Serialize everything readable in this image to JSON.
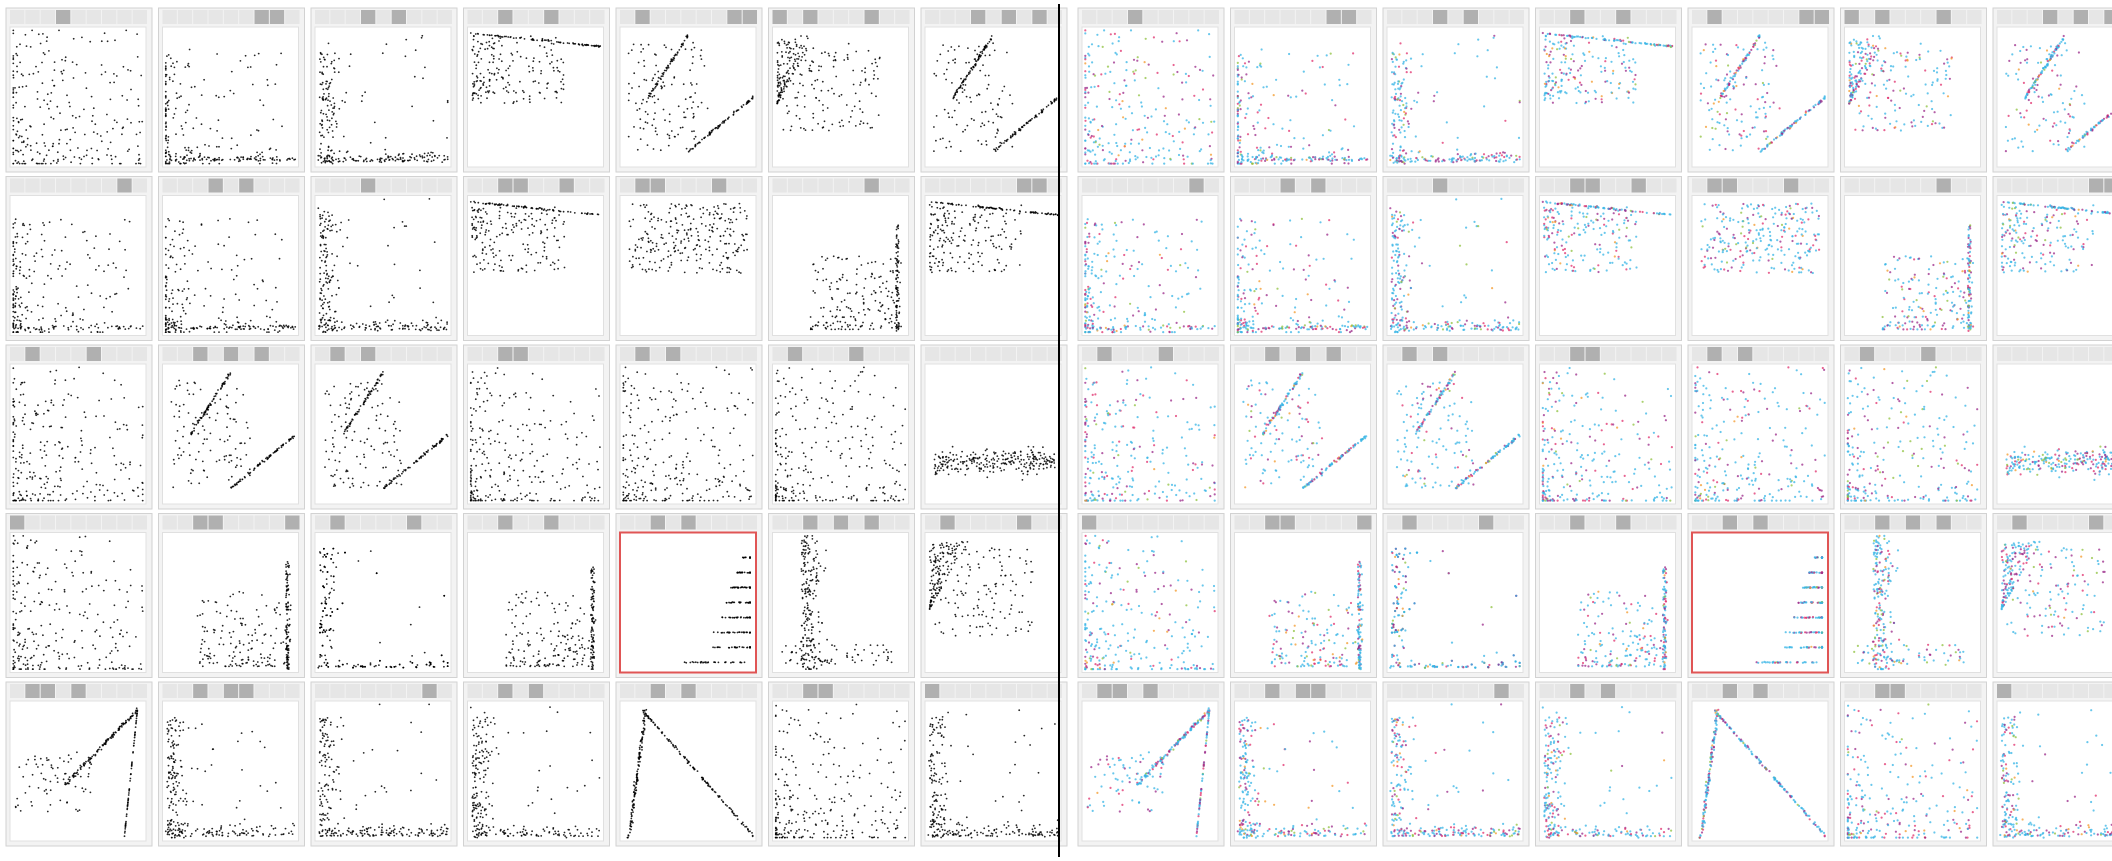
{
  "colors": {
    "page_background": "#ffffff",
    "tile_frame": "#d2d2d2",
    "tile_frame_bg": "#f3f3f3",
    "scagnostic_bar_cell": "#e6e6e6",
    "scagnostic_bar_active": "#b0b0b0",
    "highlight_border": "#e05555",
    "divider": "#000000",
    "mono_point": "#000000",
    "cluster_palette": [
      "#35b4e6",
      "#9b2a8a",
      "#e0306e",
      "#8fc23f",
      "#f39a2b"
    ]
  },
  "chart_data": [
    {
      "type": "scatter",
      "panel": "left",
      "coloring": "monochrome",
      "rows": 5,
      "columns": 7,
      "scagnostic_bar_segments": 9,
      "highlighted_tile": {
        "row": 4,
        "col": 5
      },
      "tiles": [
        {
          "pattern": "corner-dense",
          "bars": [
            3
          ]
        },
        {
          "pattern": "vertical-band-left",
          "bars": [
            6,
            7
          ]
        },
        {
          "pattern": "l-shape",
          "bars": [
            3,
            5
          ]
        },
        {
          "pattern": "top-line",
          "bars": [
            2,
            5
          ]
        },
        {
          "pattern": "two-lines",
          "bars": [
            1,
            7,
            8
          ]
        },
        {
          "pattern": "fan-left",
          "bars": [
            0,
            2,
            6
          ]
        },
        {
          "pattern": "two-lines",
          "bars": [
            3,
            5,
            7
          ]
        },
        {
          "pattern": "vertical-band-left",
          "bars": [
            7
          ]
        },
        {
          "pattern": "vertical-band-left",
          "bars": [
            3,
            5
          ]
        },
        {
          "pattern": "l-shape",
          "bars": [
            3
          ]
        },
        {
          "pattern": "top-line",
          "bars": [
            2,
            3,
            6
          ]
        },
        {
          "pattern": "top-cloud",
          "bars": [
            1,
            2,
            6
          ]
        },
        {
          "pattern": "right-l",
          "bars": [
            6
          ]
        },
        {
          "pattern": "top-line",
          "bars": [
            6,
            7
          ]
        },
        {
          "pattern": "corner-dense",
          "bars": [
            1,
            5
          ]
        },
        {
          "pattern": "two-lines",
          "bars": [
            2,
            4,
            6
          ]
        },
        {
          "pattern": "two-lines",
          "bars": [
            1,
            3
          ]
        },
        {
          "pattern": "corner-dense",
          "bars": [
            2,
            3
          ]
        },
        {
          "pattern": "corner-dense",
          "bars": [
            1,
            3
          ]
        },
        {
          "pattern": "corner-dense",
          "bars": [
            1,
            5
          ]
        },
        {
          "pattern": "horizontal-band",
          "bars": []
        },
        {
          "pattern": "corner-dense",
          "bars": [
            0
          ]
        },
        {
          "pattern": "right-l",
          "bars": [
            2,
            3,
            8
          ]
        },
        {
          "pattern": "l-shape",
          "bars": [
            1,
            6
          ]
        },
        {
          "pattern": "right-l",
          "bars": [
            2,
            5
          ]
        },
        {
          "pattern": "stripes",
          "bars": [
            2,
            4
          ]
        },
        {
          "pattern": "vertical-center",
          "bars": [
            2,
            4,
            6
          ]
        },
        {
          "pattern": "fan-left",
          "bars": [
            1,
            6
          ]
        },
        {
          "pattern": "triangle",
          "bars": [
            1,
            2,
            4
          ]
        },
        {
          "pattern": "l-shape",
          "bars": [
            2,
            4,
            5
          ]
        },
        {
          "pattern": "l-shape",
          "bars": [
            7
          ]
        },
        {
          "pattern": "l-shape",
          "bars": [
            2,
            4
          ]
        },
        {
          "pattern": "triangle-left",
          "bars": [
            2,
            4
          ]
        },
        {
          "pattern": "corner-dense",
          "bars": [
            2,
            3
          ]
        },
        {
          "pattern": "l-shape",
          "bars": [
            0
          ]
        }
      ]
    },
    {
      "type": "scatter",
      "panel": "right",
      "coloring": "clustered",
      "rows": 5,
      "columns": 7,
      "scagnostic_bar_segments": 9,
      "highlighted_tile": {
        "row": 4,
        "col": 5
      },
      "tiles": [
        {
          "pattern": "corner-dense",
          "bars": [
            3
          ]
        },
        {
          "pattern": "vertical-band-left",
          "bars": [
            6,
            7
          ]
        },
        {
          "pattern": "l-shape",
          "bars": [
            3,
            5
          ]
        },
        {
          "pattern": "top-line",
          "bars": [
            2,
            5
          ]
        },
        {
          "pattern": "two-lines",
          "bars": [
            1,
            7,
            8
          ]
        },
        {
          "pattern": "fan-left",
          "bars": [
            0,
            2,
            6
          ]
        },
        {
          "pattern": "two-lines",
          "bars": [
            3,
            5,
            7
          ]
        },
        {
          "pattern": "vertical-band-left",
          "bars": [
            7
          ]
        },
        {
          "pattern": "vertical-band-left",
          "bars": [
            3,
            5
          ]
        },
        {
          "pattern": "l-shape",
          "bars": [
            3
          ]
        },
        {
          "pattern": "top-line",
          "bars": [
            2,
            3,
            6
          ]
        },
        {
          "pattern": "top-cloud",
          "bars": [
            1,
            2,
            6
          ]
        },
        {
          "pattern": "right-l",
          "bars": [
            6
          ]
        },
        {
          "pattern": "top-line",
          "bars": [
            6,
            7
          ]
        },
        {
          "pattern": "corner-dense",
          "bars": [
            1,
            5
          ]
        },
        {
          "pattern": "two-lines",
          "bars": [
            2,
            4,
            6
          ]
        },
        {
          "pattern": "two-lines",
          "bars": [
            1,
            3
          ]
        },
        {
          "pattern": "corner-dense",
          "bars": [
            2,
            3
          ]
        },
        {
          "pattern": "corner-dense",
          "bars": [
            1,
            3
          ]
        },
        {
          "pattern": "corner-dense",
          "bars": [
            1,
            5
          ]
        },
        {
          "pattern": "horizontal-band",
          "bars": []
        },
        {
          "pattern": "corner-dense",
          "bars": [
            0
          ]
        },
        {
          "pattern": "right-l",
          "bars": [
            2,
            3,
            8
          ]
        },
        {
          "pattern": "l-shape",
          "bars": [
            1,
            6
          ]
        },
        {
          "pattern": "right-l",
          "bars": [
            2,
            5
          ]
        },
        {
          "pattern": "stripes",
          "bars": [
            2,
            4
          ]
        },
        {
          "pattern": "vertical-center",
          "bars": [
            2,
            4,
            6
          ]
        },
        {
          "pattern": "fan-left",
          "bars": [
            1,
            6
          ]
        },
        {
          "pattern": "triangle",
          "bars": [
            1,
            2,
            4
          ]
        },
        {
          "pattern": "l-shape",
          "bars": [
            2,
            4,
            5
          ]
        },
        {
          "pattern": "l-shape",
          "bars": [
            7
          ]
        },
        {
          "pattern": "l-shape",
          "bars": [
            2,
            4
          ]
        },
        {
          "pattern": "triangle-left",
          "bars": [
            2,
            4
          ]
        },
        {
          "pattern": "corner-dense",
          "bars": [
            2,
            3
          ]
        },
        {
          "pattern": "l-shape",
          "bars": [
            0
          ]
        }
      ]
    }
  ]
}
